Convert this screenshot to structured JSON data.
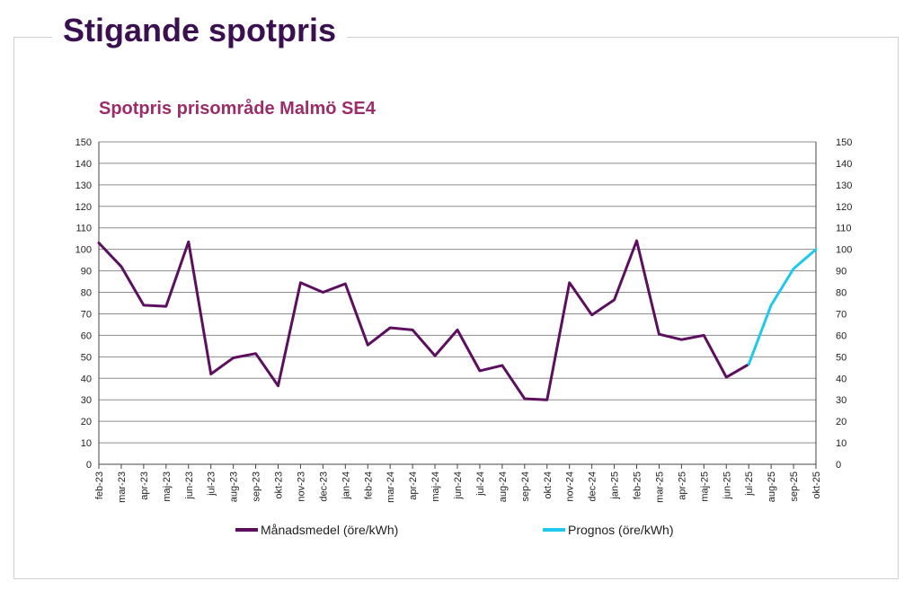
{
  "page": {
    "title": "Stigande spotpris"
  },
  "chart_data": {
    "type": "line",
    "title": "Spotpris prisområde Malmö SE4",
    "categories": [
      "feb-23",
      "mar-23",
      "apr-23",
      "maj-23",
      "jun-23",
      "jul-23",
      "aug-23",
      "sep-23",
      "okt-23",
      "nov-23",
      "dec-23",
      "jan-24",
      "feb-24",
      "mar-24",
      "apr-24",
      "maj-24",
      "jun-24",
      "jul-24",
      "aug-24",
      "sep-24",
      "okt-24",
      "nov-24",
      "dec-24",
      "jan-25",
      "feb-25",
      "mar-25",
      "apr-25",
      "maj-25",
      "jun-25",
      "jul-25",
      "aug-25",
      "sep-25",
      "okt-25"
    ],
    "ylim": [
      0,
      150
    ],
    "yticks": [
      0,
      10,
      20,
      30,
      40,
      50,
      60,
      70,
      80,
      90,
      100,
      110,
      120,
      130,
      140,
      150
    ],
    "secondary_y_axis": true,
    "grid": "horizontal",
    "legend_position": "bottom",
    "series": [
      {
        "name": "Månadsmedel (öre/kWh)",
        "color": "#5c0f5e",
        "values": [
          103,
          92,
          74,
          73.5,
          103.5,
          42,
          49.5,
          51.5,
          36.5,
          84.5,
          80,
          84,
          55.5,
          63.5,
          62.5,
          50.5,
          62.5,
          43.5,
          46,
          30.5,
          30,
          84.5,
          69.5,
          76.5,
          104,
          60.5,
          58,
          60,
          40.5,
          46.5,
          null,
          null,
          null
        ]
      },
      {
        "name": "Prognos (öre/kWh)",
        "color": "#1ec9ec",
        "values": [
          null,
          null,
          null,
          null,
          null,
          null,
          null,
          null,
          null,
          null,
          null,
          null,
          null,
          null,
          null,
          null,
          null,
          null,
          null,
          null,
          null,
          null,
          null,
          null,
          null,
          null,
          null,
          null,
          null,
          46.5,
          74,
          91,
          100
        ]
      }
    ]
  }
}
